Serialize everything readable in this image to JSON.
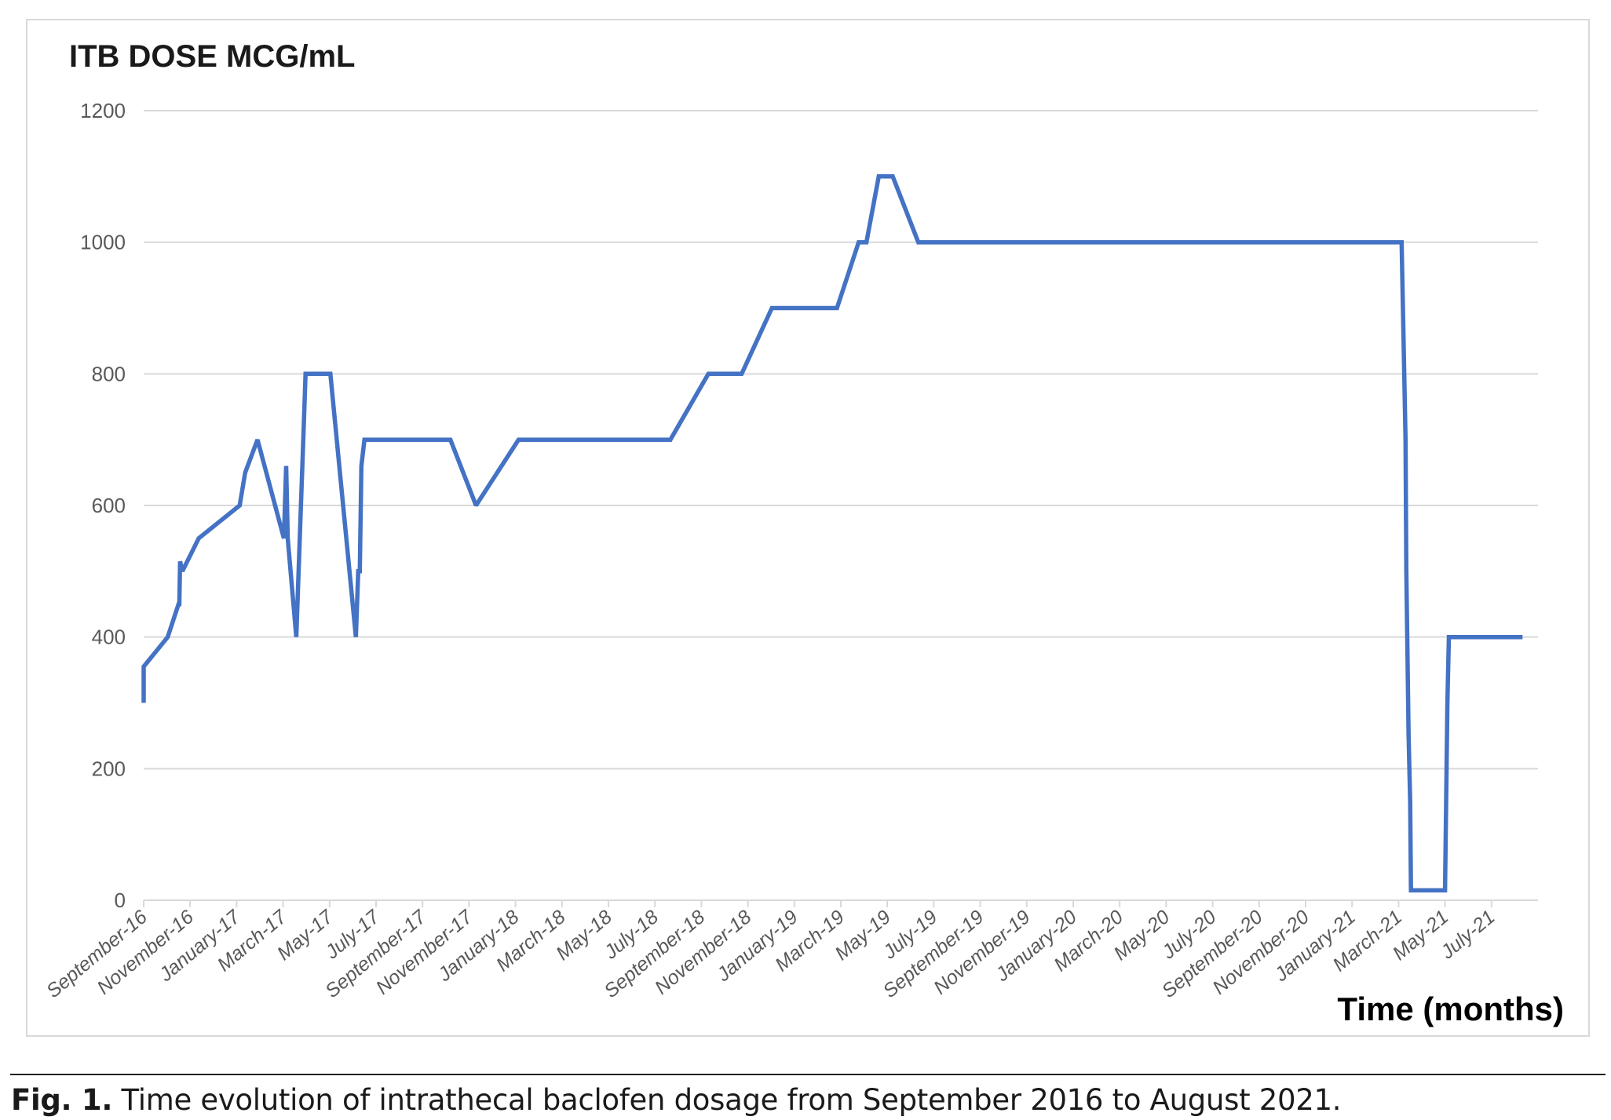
{
  "chart_data": {
    "type": "line",
    "title": "ITB DOSE MCG/mL",
    "xlabel": "Time (months)",
    "ylabel": "",
    "ylim": [
      0,
      1200
    ],
    "yticks": [
      0,
      200,
      400,
      600,
      800,
      1000,
      1200
    ],
    "xlim": [
      "2016-09-01",
      "2021-08-31"
    ],
    "xtick_labels": [
      "September-16",
      "November-16",
      "January-17",
      "March-17",
      "May-17",
      "July-17",
      "September-17",
      "November-17",
      "January-18",
      "March-18",
      "May-18",
      "July-18",
      "September-18",
      "November-18",
      "January-19",
      "March-19",
      "May-19",
      "July-19",
      "September-19",
      "November-19",
      "January-20",
      "March-20",
      "May-20",
      "July-20",
      "September-20",
      "November-20",
      "January-21",
      "March-21",
      "May-21",
      "July-21"
    ],
    "grid": true,
    "legend": "none",
    "line_color": "#4472C4",
    "series": [
      {
        "x": [
          "2016-09-01",
          "2016-09-01",
          "2016-10-02",
          "2016-10-16",
          "2016-10-17",
          "2016-10-18",
          "2016-10-21",
          "2016-11-12",
          "2017-01-05",
          "2017-01-12",
          "2017-01-28",
          "2017-03-02",
          "2017-03-05",
          "2017-03-07",
          "2017-03-18",
          "2017-03-24",
          "2017-03-27",
          "2017-03-30",
          "2017-05-02",
          "2017-06-05",
          "2017-06-08",
          "2017-06-10",
          "2017-06-12",
          "2017-06-16",
          "2017-10-07",
          "2017-11-10",
          "2018-01-05",
          "2018-07-21",
          "2018-09-10",
          "2018-10-23",
          "2018-12-02",
          "2019-02-26",
          "2019-03-24",
          "2019-04-04",
          "2019-04-20",
          "2019-05-08",
          "2019-06-11",
          "2021-03-05",
          "2021-03-10",
          "2021-03-11",
          "2021-03-14",
          "2021-03-16",
          "2021-03-17",
          "2021-05-01",
          "2021-05-04",
          "2021-05-06",
          "2021-08-11"
        ],
        "values": [
          300,
          355,
          400,
          450,
          450,
          515,
          500,
          550,
          600,
          650,
          700,
          550,
          660,
          550,
          400,
          600,
          700,
          800,
          800,
          400,
          500,
          500,
          660,
          700,
          700,
          600,
          700,
          700,
          800,
          800,
          900,
          900,
          1000,
          1000,
          1100,
          1100,
          1000,
          1000,
          700,
          500,
          250,
          150,
          15,
          15,
          300,
          400,
          400
        ]
      }
    ]
  },
  "caption": {
    "label": "Fig. 1.",
    "text": " Time evolution of intrathecal baclofen dosage from September 2016 to August 2021."
  }
}
